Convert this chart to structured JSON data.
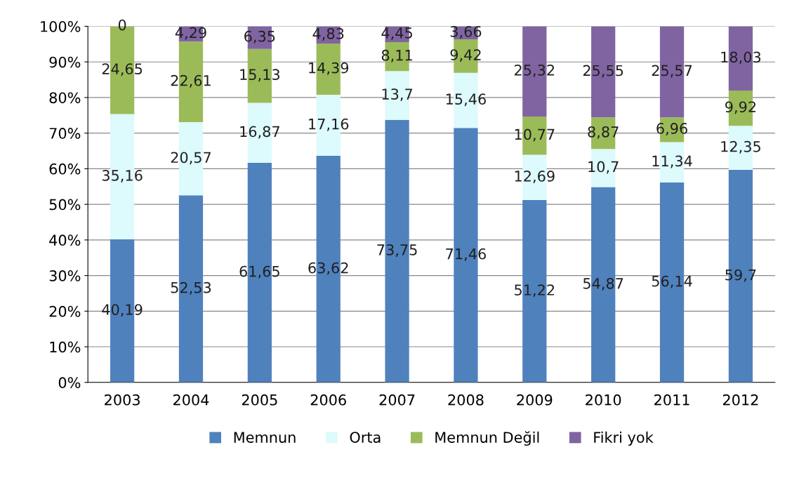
{
  "chart_data": {
    "type": "bar",
    "stacked": true,
    "categories": [
      "2003",
      "2004",
      "2005",
      "2006",
      "2007",
      "2008",
      "2009",
      "2010",
      "2011",
      "2012"
    ],
    "series": [
      {
        "name": "Memnun",
        "color": "#4f81bd",
        "values": [
          40.19,
          52.53,
          61.65,
          63.62,
          73.75,
          71.46,
          51.22,
          54.87,
          56.14,
          59.7
        ],
        "value_labels": [
          "40,19",
          "52,53",
          "61,65",
          "63,62",
          "73,75",
          "71,46",
          "51,22",
          "54,87",
          "56,14",
          "59,7"
        ]
      },
      {
        "name": "Orta",
        "color": "#ddfafc",
        "values": [
          35.16,
          20.57,
          16.87,
          17.16,
          13.7,
          15.46,
          12.69,
          10.7,
          11.34,
          12.35
        ],
        "value_labels": [
          "35,16",
          "20,57",
          "16,87",
          "17,16",
          "13,7",
          "15,46",
          "12,69",
          "10,7",
          "11,34",
          "12,35"
        ]
      },
      {
        "name": "Memnun Değil",
        "color": "#9bbb59",
        "values": [
          24.65,
          22.61,
          15.13,
          14.39,
          8.11,
          9.42,
          10.77,
          8.87,
          6.96,
          9.92
        ],
        "value_labels": [
          "24,65",
          "22,61",
          "15,13",
          "14,39",
          "8,11",
          "9,42",
          "10,77",
          "8,87",
          "6,96",
          "9,92"
        ]
      },
      {
        "name": "Fikri yok",
        "color": "#8064a2",
        "values": [
          0,
          4.29,
          6.35,
          4.83,
          4.45,
          3.66,
          25.32,
          25.55,
          25.57,
          18.03
        ],
        "value_labels": [
          "0",
          "4,29",
          "6,35",
          "4,83",
          "4,45",
          "3,66",
          "25,32",
          "25,55",
          "25,57",
          "18,03"
        ]
      }
    ],
    "ylim": [
      0,
      100
    ],
    "yticks": [
      {
        "value": 0,
        "label": "0%"
      },
      {
        "value": 10,
        "label": "10%"
      },
      {
        "value": 20,
        "label": "20%"
      },
      {
        "value": 30,
        "label": "30%"
      },
      {
        "value": 40,
        "label": "40%"
      },
      {
        "value": 50,
        "label": "50%"
      },
      {
        "value": 60,
        "label": "60%"
      },
      {
        "value": 70,
        "label": "70%"
      },
      {
        "value": 80,
        "label": "80%"
      },
      {
        "value": 90,
        "label": "90%"
      },
      {
        "value": 100,
        "label": "100%"
      }
    ],
    "grid": "y",
    "legend": "bottom"
  }
}
